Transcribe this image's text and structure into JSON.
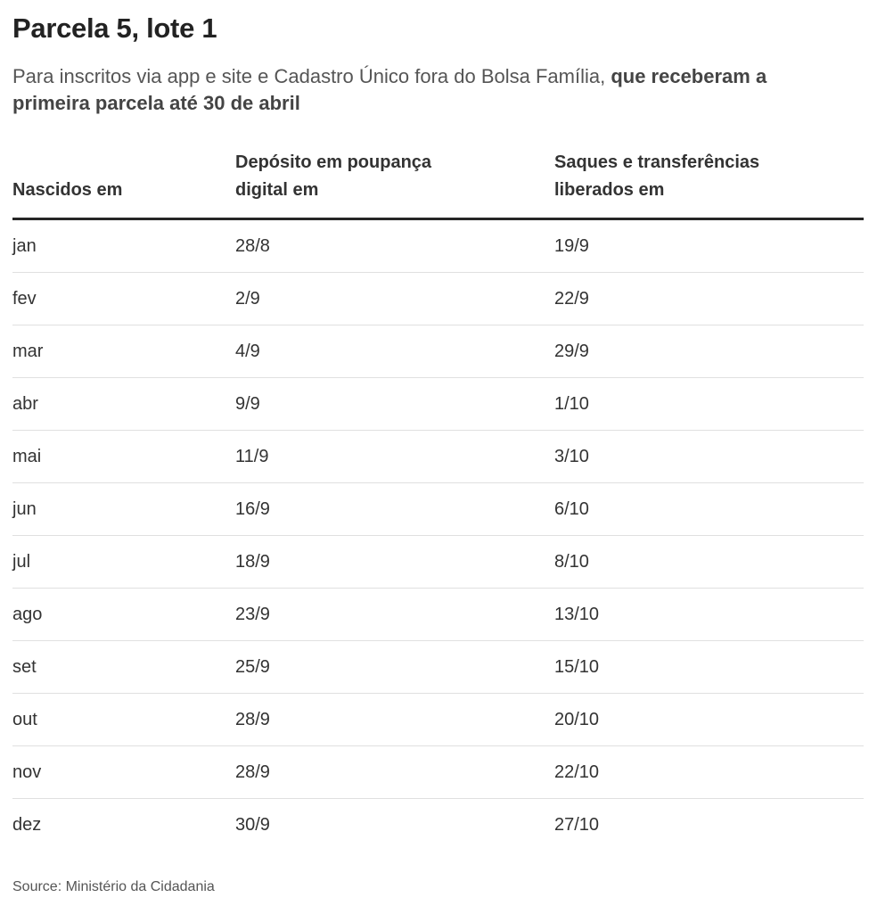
{
  "header": {
    "title": "Parcela 5, lote 1",
    "subtitle_regular": "Para inscritos via app e site e Cadastro Único fora do Bolsa Família, ",
    "subtitle_bold": "que receberam a primeira parcela até 30 de abril"
  },
  "chart_data": {
    "type": "table",
    "title": "Parcela 5, lote 1",
    "columns": [
      {
        "label": "Nascidos em",
        "lines": [
          "Nascidos em"
        ]
      },
      {
        "label": "Depósito em poupança digital em",
        "lines": [
          "Depósito em poupança",
          "digital em"
        ]
      },
      {
        "label": "Saques e transferências liberados em",
        "lines": [
          "Saques e transferências",
          "liberados em"
        ]
      }
    ],
    "rows": [
      {
        "month": "jan",
        "deposit": "28/8",
        "withdraw": "19/9"
      },
      {
        "month": "fev",
        "deposit": "2/9",
        "withdraw": "22/9"
      },
      {
        "month": "mar",
        "deposit": "4/9",
        "withdraw": "29/9"
      },
      {
        "month": "abr",
        "deposit": "9/9",
        "withdraw": "1/10"
      },
      {
        "month": "mai",
        "deposit": "11/9",
        "withdraw": "3/10"
      },
      {
        "month": "jun",
        "deposit": "16/9",
        "withdraw": "6/10"
      },
      {
        "month": "jul",
        "deposit": "18/9",
        "withdraw": "8/10"
      },
      {
        "month": "ago",
        "deposit": "23/9",
        "withdraw": "13/10"
      },
      {
        "month": "set",
        "deposit": "25/9",
        "withdraw": "15/10"
      },
      {
        "month": "out",
        "deposit": "28/9",
        "withdraw": "20/10"
      },
      {
        "month": "nov",
        "deposit": "28/9",
        "withdraw": "22/10"
      },
      {
        "month": "dez",
        "deposit": "30/9",
        "withdraw": "27/10"
      }
    ]
  },
  "footer": {
    "source": "Source: Ministério da Cidadania"
  },
  "colors": {
    "background": "#ffffff",
    "title_text": "#222222",
    "body_text": "#333333",
    "muted_text": "#555555",
    "subtitle_bold_text": "#444444",
    "header_rule": "#262626",
    "row_divider": "#e0e0e0"
  }
}
